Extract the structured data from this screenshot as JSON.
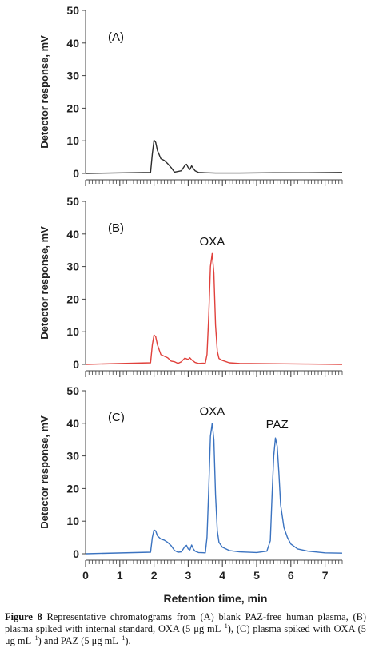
{
  "chart_data": [
    {
      "type": "line",
      "panel_label": "(A)",
      "ylabel": "Detector response, mV",
      "ylim": [
        0,
        50
      ],
      "xlim": [
        0,
        7.5
      ],
      "yticks": [
        "0",
        "10",
        "20",
        "30",
        "40",
        "50"
      ],
      "color": "#2b2b2b",
      "annotations": [],
      "series": [
        {
          "x": [
            0,
            1.9,
            1.95,
            2.0,
            2.05,
            2.1,
            2.2,
            2.3,
            2.4,
            2.5,
            2.6,
            2.7,
            2.8,
            2.9,
            2.95,
            3.0,
            3.05,
            3.1,
            3.15,
            3.2,
            3.3,
            3.5,
            3.8,
            4.5,
            5.5,
            6.5,
            7.5
          ],
          "y": [
            0,
            0.3,
            6,
            10.2,
            9.5,
            7,
            4.5,
            4,
            3,
            1.8,
            0.4,
            0.6,
            0.8,
            2.4,
            2.8,
            1.8,
            1.2,
            2.3,
            1.5,
            0.8,
            0.3,
            0.2,
            0.1,
            0.1,
            0.2,
            0.2,
            0.3
          ]
        }
      ]
    },
    {
      "type": "line",
      "panel_label": "(B)",
      "ylabel": "Detector response, mV",
      "ylim": [
        0,
        50
      ],
      "xlim": [
        0,
        7.5
      ],
      "yticks": [
        "0",
        "10",
        "20",
        "30",
        "40",
        "50"
      ],
      "color": "#e0413c",
      "annotations": [
        {
          "text": "OXA",
          "x": 3.7,
          "y": 35
        }
      ],
      "series": [
        {
          "x": [
            0,
            1.9,
            1.95,
            2.0,
            2.05,
            2.1,
            2.2,
            2.3,
            2.4,
            2.5,
            2.6,
            2.7,
            2.8,
            2.9,
            3.0,
            3.05,
            3.1,
            3.2,
            3.3,
            3.5,
            3.55,
            3.6,
            3.65,
            3.7,
            3.75,
            3.8,
            3.85,
            3.9,
            4.0,
            4.2,
            4.5,
            5.5,
            6.5,
            7.5
          ],
          "y": [
            0,
            0.5,
            6,
            9.0,
            8.5,
            6,
            3,
            2.5,
            2,
            1,
            0.8,
            0.3,
            0.8,
            1.9,
            1.5,
            2,
            1.4,
            0.6,
            0.3,
            0.4,
            3,
            15,
            30,
            34,
            28,
            12,
            4,
            1.8,
            1.2,
            0.5,
            0.3,
            0.2,
            0.1,
            0
          ]
        }
      ]
    },
    {
      "type": "line",
      "panel_label": "(C)",
      "ylabel": "Detector response, mV",
      "xlabel": "Retention time, min",
      "ylim": [
        0,
        50
      ],
      "xlim": [
        0,
        7.5
      ],
      "xticks": [
        "0",
        "1",
        "2",
        "3",
        "4",
        "5",
        "6",
        "7"
      ],
      "yticks": [
        "0",
        "10",
        "20",
        "30",
        "40",
        "50"
      ],
      "color": "#3b73c0",
      "annotations": [
        {
          "text": "OXA",
          "x": 3.7,
          "y": 41
        },
        {
          "text": "PAZ",
          "x": 5.6,
          "y": 37
        }
      ],
      "series": [
        {
          "x": [
            0,
            1.9,
            1.95,
            2.0,
            2.05,
            2.1,
            2.2,
            2.3,
            2.4,
            2.5,
            2.6,
            2.7,
            2.8,
            2.9,
            2.95,
            3.0,
            3.05,
            3.1,
            3.15,
            3.2,
            3.3,
            3.5,
            3.55,
            3.6,
            3.65,
            3.7,
            3.75,
            3.8,
            3.85,
            3.9,
            4.0,
            4.2,
            4.5,
            5.0,
            5.3,
            5.4,
            5.45,
            5.5,
            5.55,
            5.6,
            5.65,
            5.7,
            5.8,
            5.9,
            6.0,
            6.2,
            6.5,
            7.0,
            7.5
          ],
          "y": [
            0,
            0.5,
            5,
            7.3,
            7,
            5.5,
            4.5,
            4.2,
            3.5,
            2.5,
            1,
            0.5,
            0.6,
            2.2,
            2.6,
            1.5,
            1.2,
            2.7,
            1.5,
            0.8,
            0.4,
            0.3,
            5,
            20,
            36,
            40,
            35,
            18,
            7,
            3.5,
            2,
            1,
            0.6,
            0.4,
            0.8,
            4,
            18,
            30,
            35.5,
            33,
            25,
            15,
            8,
            5,
            3,
            1.5,
            0.8,
            0.3,
            0.2
          ]
        }
      ]
    }
  ],
  "caption": {
    "label": "Figure 8",
    "text_1": "  Representative chromatograms from (A) blank PAZ-free human plasma, (B) plasma spiked with internal standard, OXA (5 μg mL",
    "sup_1": "−1",
    "text_2": "), (C) plasma spiked with OXA (5 μg mL",
    "sup_2": "−1",
    "text_3": ") and PAZ (5 μg mL",
    "sup_3": "−1",
    "text_4": ")."
  }
}
